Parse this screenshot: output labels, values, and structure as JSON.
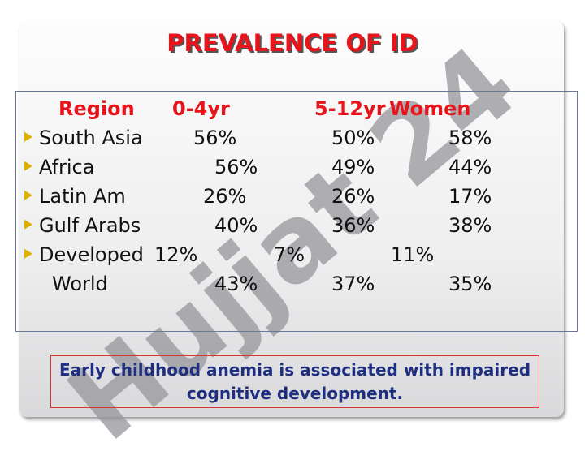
{
  "title": "PREVALENCE OF ID",
  "watermark": "Hujjat 24",
  "table": {
    "header": [
      "Region",
      "0-4yr",
      "5-12yr",
      "Women"
    ],
    "rows": [
      [
        "South Asia",
        "56%",
        "50%",
        "58%"
      ],
      [
        "Africa",
        "56%",
        "49%",
        "44%"
      ],
      [
        "Latin Am",
        "26%",
        "26%",
        "17%"
      ],
      [
        "Gulf Arabs",
        "40%",
        "36%",
        "38%"
      ],
      [
        "Developed",
        "12%",
        "7%",
        "11%"
      ],
      [
        "World",
        "43%",
        "37%",
        "35%"
      ]
    ]
  },
  "note": "Early childhood anemia is associated with impaired cognitive development."
}
